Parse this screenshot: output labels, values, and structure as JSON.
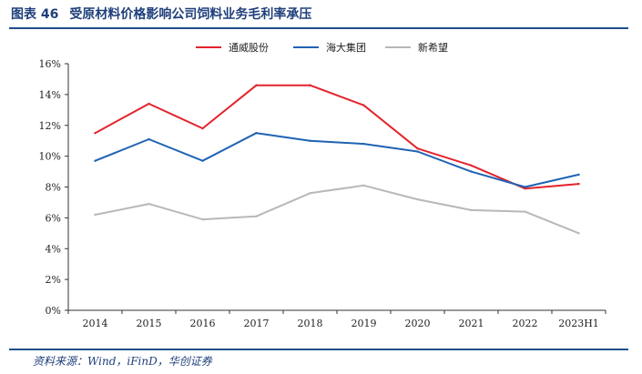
{
  "figure": {
    "number": "图表 46",
    "title": "受原材料价格影响公司饲料业务毛利率承压",
    "source": "资料来源：Wind，iFinD，华创证券"
  },
  "chart_data": {
    "type": "line",
    "title": "受原材料价格影响公司饲料业务毛利率承压",
    "xlabel": "",
    "ylabel": "",
    "categories": [
      "2014",
      "2015",
      "2016",
      "2017",
      "2018",
      "2019",
      "2020",
      "2021",
      "2022",
      "2023H1"
    ],
    "y_ticks": [
      "0%",
      "2%",
      "4%",
      "6%",
      "8%",
      "10%",
      "12%",
      "14%",
      "16%"
    ],
    "ylim": [
      0,
      16
    ],
    "unit": "%",
    "grid": false,
    "legend_position": "top",
    "series": [
      {
        "name": "通威股份",
        "color": "#e3232c",
        "values": [
          11.5,
          13.4,
          11.8,
          14.6,
          14.6,
          13.3,
          10.5,
          9.4,
          7.9,
          8.2
        ]
      },
      {
        "name": "海大集团",
        "color": "#1f63b3",
        "values": [
          9.7,
          11.1,
          9.7,
          11.5,
          11.0,
          10.8,
          10.3,
          9.0,
          8.0,
          8.8
        ]
      },
      {
        "name": "新希望",
        "color": "#b8b8b8",
        "values": [
          6.2,
          6.9,
          5.9,
          6.1,
          7.6,
          8.1,
          7.2,
          6.5,
          6.4,
          5.0
        ]
      }
    ]
  }
}
